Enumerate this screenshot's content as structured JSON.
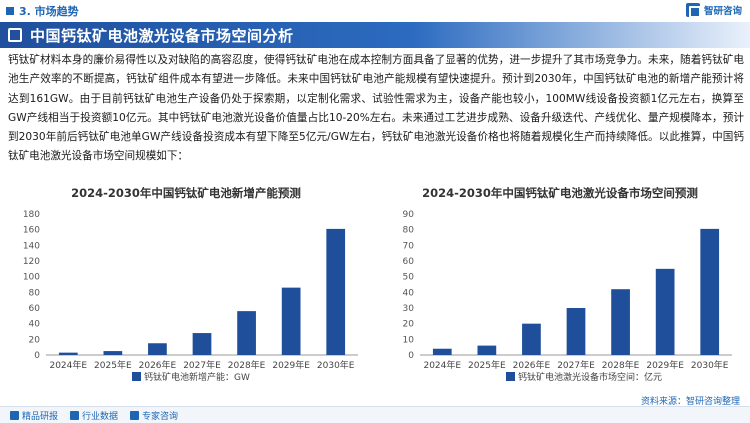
{
  "header": {
    "section_label": "3. 市场趋势",
    "brand_name": "智研咨询"
  },
  "banner": {
    "title": "中国钙钛矿电池激光设备市场空间分析"
  },
  "body_text": "钙钛矿材料本身的廉价易得性以及对缺陷的高容忍度，使得钙钛矿电池在成本控制方面具备了显著的优势，进一步提升了其市场竞争力。未来，随着钙钛矿电池生产效率的不断提高，钙钛矿组件成本有望进一步降低。未来中国钙钛矿电池产能规模有望快速提升。预计到2030年，中国钙钛矿电池的新增产能预计将达到161GW。由于目前钙钛矿电池生产设备仍处于探索期，以定制化需求、试验性需求为主，设备产能也较小，100MW线设备投资额1亿元左右，换算至GW产线相当于投资额10亿元。其中钙钛矿电池激光设备价值量占比10-20%左右。未来通过工艺进步成熟、设备升级迭代、产线优化、量产规模降本，预计到2030年前后钙钛矿电池单GW产线设备投资成本有望下降至5亿元/GW左右，钙钛矿电池激光设备价格也将随着规模化生产而持续降低。以此推算，中国钙钛矿电池激光设备市场空间规模如下：",
  "footer": {
    "links": [
      "精品研报",
      "行业数据",
      "专家咨询"
    ],
    "source": "资料来源：智研咨询整理"
  },
  "colors": {
    "accent": "#1e66b4",
    "bar": "#1f4e9a"
  },
  "chart_data": [
    {
      "type": "bar",
      "title": "2024-2030年中国钙钛矿电池新增产能预测",
      "categories": [
        "2024年E",
        "2025年E",
        "2026年E",
        "2027年E",
        "2028年E",
        "2029年E",
        "2030年E"
      ],
      "series": [
        {
          "name": "钙钛矿电池新增产能：GW",
          "values": [
            3,
            5,
            15,
            28,
            56,
            86,
            161
          ]
        }
      ],
      "ylim": [
        0,
        180
      ],
      "yticks": [
        0,
        20,
        40,
        60,
        80,
        100,
        120,
        140,
        160,
        180
      ],
      "grid": false,
      "legend": "bottom"
    },
    {
      "type": "bar",
      "title": "2024-2030年中国钙钛矿电池激光设备市场空间预测",
      "categories": [
        "2024年E",
        "2025年E",
        "2026年E",
        "2027年E",
        "2028年E",
        "2029年E",
        "2030年E"
      ],
      "series": [
        {
          "name": "钙钛矿电池激光设备市场空间：亿元",
          "values": [
            4,
            6,
            20,
            30,
            42,
            55,
            80.5
          ]
        }
      ],
      "ylim": [
        0,
        90
      ],
      "yticks": [
        0,
        10,
        20,
        30,
        40,
        50,
        60,
        70,
        80,
        90
      ],
      "grid": false,
      "legend": "bottom"
    }
  ]
}
